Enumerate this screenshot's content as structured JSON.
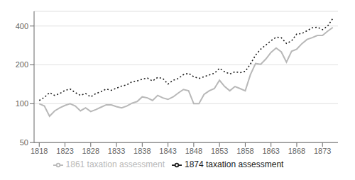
{
  "chart_data": {
    "type": "line",
    "x": [
      1818,
      1819,
      1820,
      1821,
      1822,
      1823,
      1824,
      1825,
      1826,
      1827,
      1828,
      1829,
      1830,
      1831,
      1832,
      1833,
      1834,
      1835,
      1836,
      1837,
      1838,
      1839,
      1840,
      1841,
      1842,
      1843,
      1844,
      1845,
      1846,
      1847,
      1848,
      1849,
      1850,
      1851,
      1852,
      1853,
      1854,
      1855,
      1856,
      1857,
      1858,
      1859,
      1860,
      1861,
      1862,
      1863,
      1864,
      1865,
      1866,
      1867,
      1868,
      1869,
      1870,
      1871,
      1872,
      1873,
      1874,
      1875
    ],
    "series": [
      {
        "name": "1861 taxation assessment",
        "color": "#b8b8b8",
        "line_style": "solid",
        "values": [
          100,
          96,
          80,
          88,
          93,
          97,
          100,
          96,
          88,
          93,
          87,
          90,
          94,
          98,
          98,
          95,
          93,
          96,
          101,
          104,
          113,
          111,
          106,
          116,
          111,
          108,
          113,
          121,
          129,
          126,
          100,
          100,
          118,
          126,
          131,
          152,
          136,
          126,
          136,
          131,
          126,
          168,
          205,
          202,
          222,
          250,
          270,
          252,
          210,
          255,
          265,
          292,
          315,
          325,
          338,
          338,
          365,
          390
        ]
      },
      {
        "name": "1874 taxation assessment",
        "color": "#1a1a1a",
        "line_style": "dotted",
        "values": [
          106,
          112,
          122,
          116,
          120,
          127,
          130,
          122,
          116,
          120,
          113,
          120,
          124,
          130,
          127,
          132,
          137,
          140,
          148,
          150,
          155,
          158,
          150,
          160,
          157,
          142,
          152,
          157,
          168,
          172,
          162,
          157,
          162,
          167,
          172,
          188,
          177,
          170,
          177,
          174,
          178,
          203,
          238,
          265,
          285,
          308,
          328,
          325,
          293,
          307,
          347,
          350,
          368,
          388,
          392,
          375,
          400,
          458
        ]
      }
    ],
    "xlim": [
      1817,
      1876
    ],
    "xticks": [
      1818,
      1823,
      1828,
      1833,
      1838,
      1843,
      1848,
      1853,
      1858,
      1863,
      1868,
      1873
    ],
    "ylim": [
      50,
      520
    ],
    "yticks": [
      50,
      100,
      200,
      400
    ],
    "log": "y",
    "grid": true,
    "legend": "bottom"
  }
}
